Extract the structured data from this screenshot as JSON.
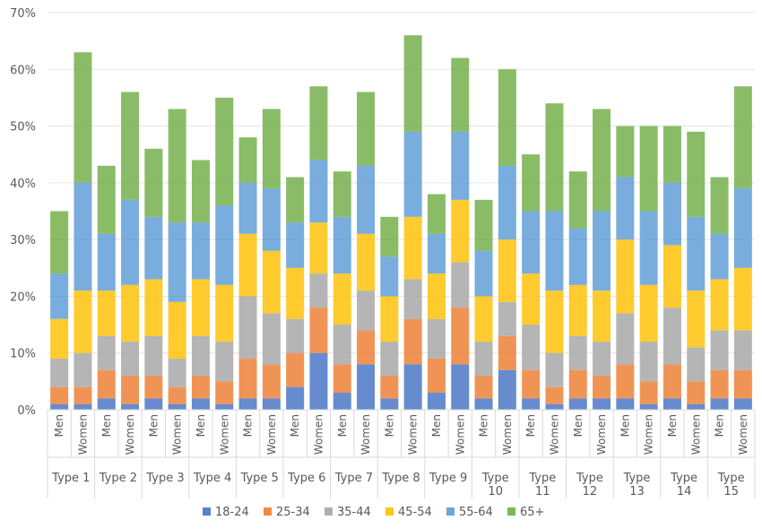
{
  "chart_data": {
    "type": "bar",
    "stacked": true,
    "y_unit": "%",
    "ylim": [
      0,
      70
    ],
    "yticks": [
      "0%",
      "10%",
      "20%",
      "30%",
      "40%",
      "50%",
      "60%",
      "70%"
    ],
    "grid": true,
    "legend_position": "bottom",
    "groups": [
      "Type 1",
      "Type 2",
      "Type 3",
      "Type 4",
      "Type 5",
      "Type 6",
      "Type 7",
      "Type 8",
      "Type 9",
      "Type 10",
      "Type 11",
      "Type 12",
      "Type 13",
      "Type 14",
      "Type 15"
    ],
    "subcategories": [
      "Men",
      "Women"
    ],
    "categories": [
      "Type 1 Men",
      "Type 1 Women",
      "Type 2 Men",
      "Type 2 Women",
      "Type 3 Men",
      "Type 3 Women",
      "Type 4 Men",
      "Type 4 Women",
      "Type 5 Men",
      "Type 5 Women",
      "Type 6 Men",
      "Type 6 Women",
      "Type 7 Men",
      "Type 7 Women",
      "Type 8 Men",
      "Type 8 Women",
      "Type 9 Men",
      "Type 9 Women",
      "Type 10 Men",
      "Type 10 Women",
      "Type 11 Men",
      "Type 11 Women",
      "Type 12 Men",
      "Type 12 Women",
      "Type 13 Men",
      "Type 13 Women",
      "Type 14 Men",
      "Type 14 Women",
      "Type 15 Men",
      "Type 15 Women"
    ],
    "series": [
      {
        "name": "18-24",
        "color": "#4472C4",
        "values": [
          1,
          1,
          2,
          1,
          2,
          1,
          2,
          1,
          2,
          2,
          4,
          10,
          3,
          8,
          2,
          8,
          3,
          8,
          2,
          7,
          2,
          1,
          2,
          2,
          2,
          1,
          2,
          1,
          2,
          2
        ]
      },
      {
        "name": "25-34",
        "color": "#ED7D31",
        "values": [
          3,
          3,
          5,
          5,
          4,
          3,
          4,
          4,
          7,
          6,
          6,
          8,
          5,
          6,
          4,
          8,
          6,
          10,
          4,
          6,
          5,
          3,
          5,
          4,
          6,
          4,
          6,
          4,
          5,
          5
        ]
      },
      {
        "name": "35-44",
        "color": "#A5A5A5",
        "values": [
          5,
          6,
          6,
          6,
          7,
          5,
          7,
          7,
          11,
          9,
          6,
          6,
          7,
          7,
          6,
          7,
          7,
          8,
          6,
          6,
          8,
          6,
          6,
          6,
          9,
          7,
          10,
          6,
          7,
          7
        ]
      },
      {
        "name": "45-54",
        "color": "#FFC000",
        "values": [
          7,
          11,
          8,
          10,
          10,
          10,
          10,
          10,
          11,
          11,
          9,
          9,
          9,
          10,
          8,
          11,
          8,
          11,
          8,
          11,
          9,
          11,
          9,
          9,
          13,
          10,
          11,
          10,
          9,
          11
        ]
      },
      {
        "name": "55-64",
        "color": "#5B9BD5",
        "values": [
          8,
          19,
          10,
          15,
          11,
          14,
          10,
          14,
          9,
          11,
          8,
          11,
          10,
          12,
          7,
          15,
          7,
          12,
          8,
          13,
          11,
          14,
          10,
          14,
          11,
          13,
          11,
          13,
          8,
          14
        ]
      },
      {
        "name": "65+",
        "color": "#70AD47",
        "values": [
          11,
          23,
          12,
          19,
          12,
          20,
          11,
          19,
          8,
          14,
          8,
          13,
          8,
          13,
          7,
          17,
          7,
          13,
          9,
          17,
          10,
          19,
          10,
          18,
          9,
          15,
          10,
          15,
          10,
          18
        ]
      }
    ]
  }
}
